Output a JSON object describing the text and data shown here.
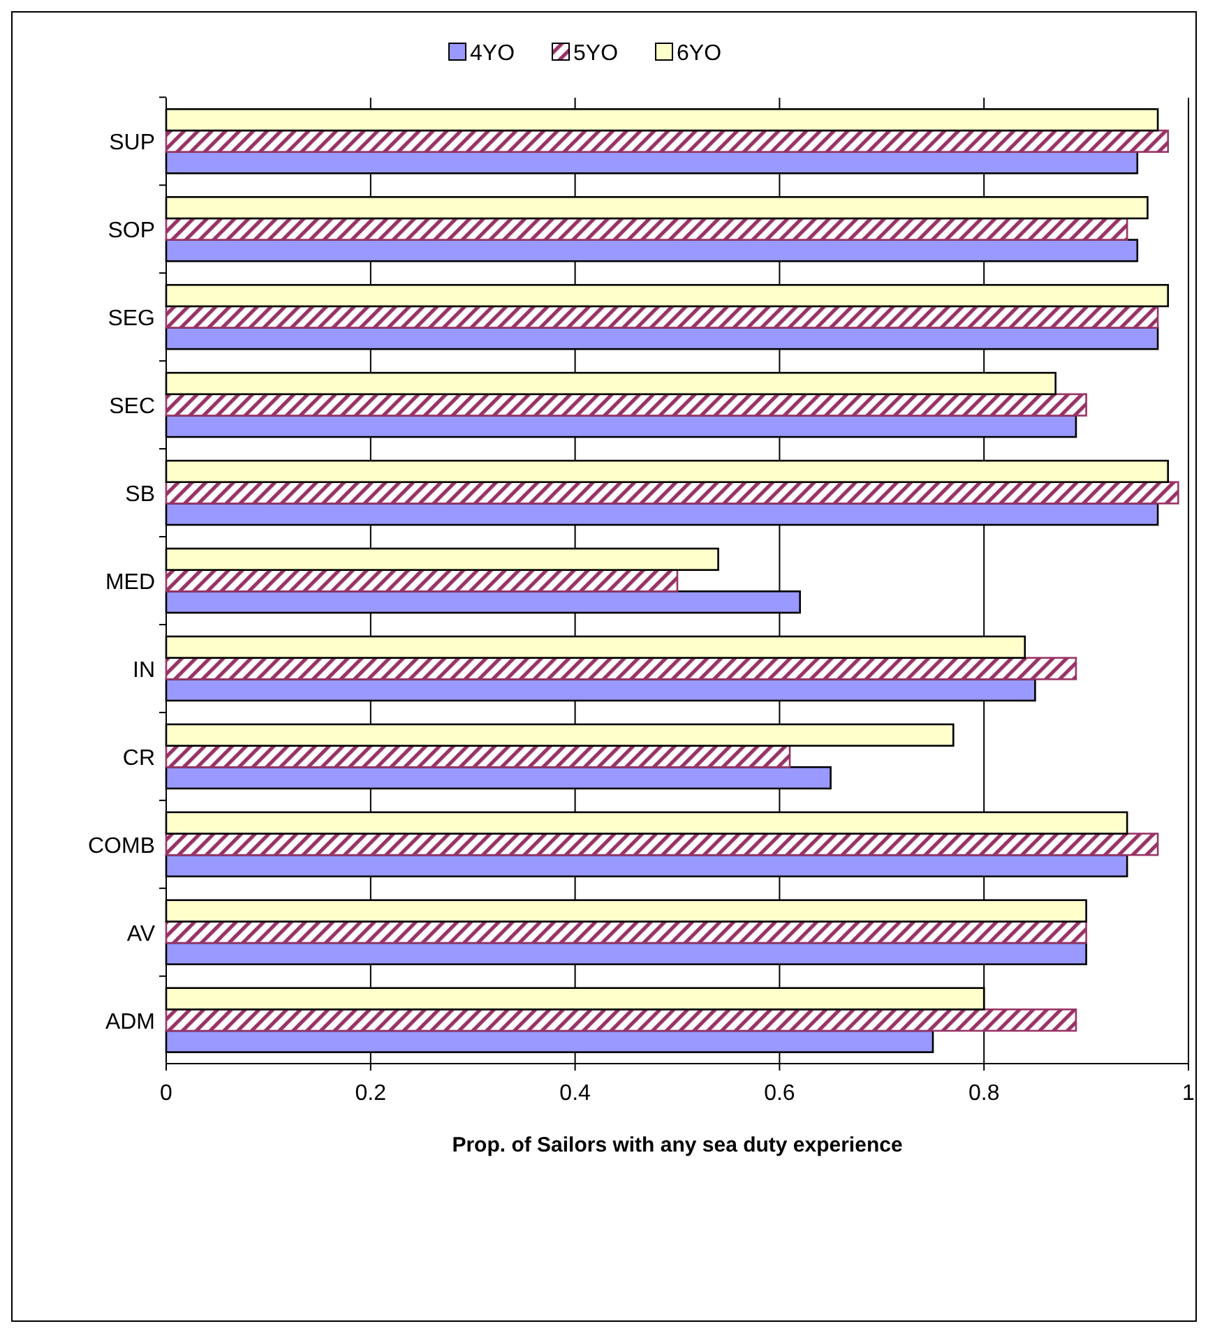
{
  "chart_data": {
    "type": "bar",
    "orientation": "horizontal",
    "xlabel": "Prop. of Sailors with any sea duty experience",
    "categories": [
      "SUP",
      "SOP",
      "SEG",
      "SEC",
      "SB",
      "MED",
      "IN",
      "CR",
      "COMB",
      "AV",
      "ADM"
    ],
    "series": [
      {
        "name": "4YO",
        "color": "#9999ff",
        "values": [
          0.95,
          0.95,
          0.97,
          0.89,
          0.97,
          0.62,
          0.85,
          0.65,
          0.94,
          0.9,
          0.75
        ]
      },
      {
        "name": "5YO",
        "color": "#993366",
        "values": [
          0.98,
          0.94,
          0.97,
          0.9,
          0.99,
          0.5,
          0.89,
          0.61,
          0.97,
          0.9,
          0.89
        ]
      },
      {
        "name": "6YO",
        "color": "#ffffcc",
        "values": [
          0.97,
          0.96,
          0.98,
          0.87,
          0.98,
          0.54,
          0.84,
          0.77,
          0.94,
          0.9,
          0.8
        ]
      }
    ],
    "xlim": [
      0,
      1
    ],
    "xticks": [
      0,
      0.2,
      0.4,
      0.6,
      0.8,
      1
    ],
    "grid": "x",
    "legend": "top"
  }
}
